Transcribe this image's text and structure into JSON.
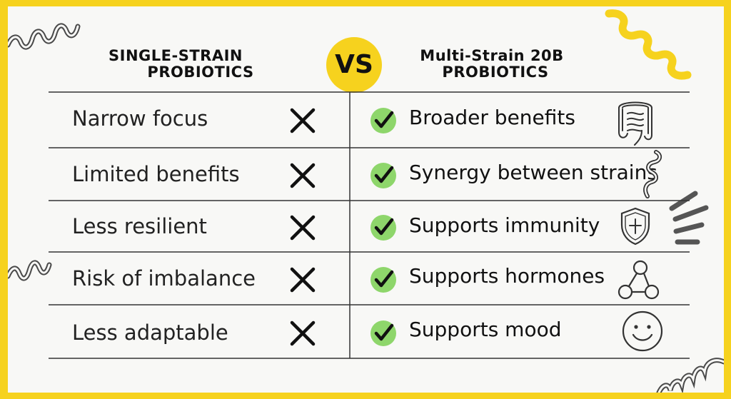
{
  "header": {
    "left_line1": "SINGLE-STRAIN",
    "left_line2": "PROBIOTICS",
    "vs_label": "VS",
    "right_line1": "Multi-Strain 20B",
    "right_line2": "PROBIOTICS"
  },
  "rows": [
    {
      "single": "Narrow focus",
      "multi": "Broader benefits",
      "icon": "intestine-icon"
    },
    {
      "single": "Limited benefits",
      "multi": "Synergy between strains",
      "icon": "probiotic-strand-icon"
    },
    {
      "single": "Less resilient",
      "multi": "Supports immunity",
      "icon": "shield-cross-icon"
    },
    {
      "single": "Risk of imbalance",
      "multi": "Supports hormones",
      "icon": "molecule-icon"
    },
    {
      "single": "Less adaptable",
      "multi": "Supports mood",
      "icon": "smiley-face-icon"
    }
  ],
  "colors": {
    "frame": "#f6d21e",
    "background": "#f8f8f6",
    "check_green": "#8ed66b",
    "x_mark": "#111111",
    "decor_gray": "#555555"
  }
}
